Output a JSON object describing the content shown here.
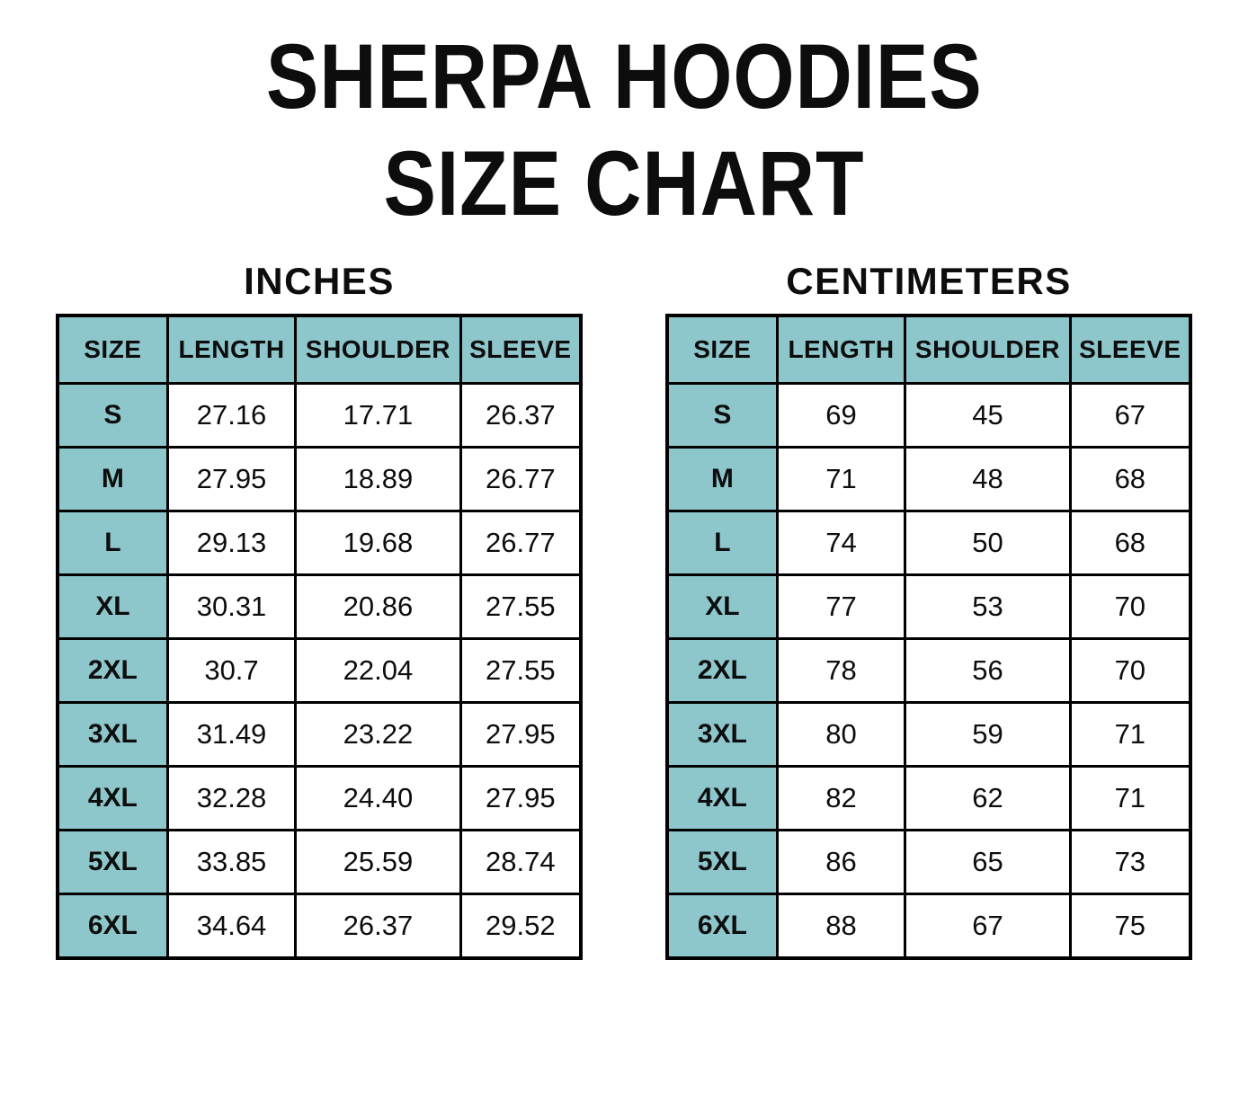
{
  "page": {
    "title_line1": "SHERPA HOODIES",
    "title_line2": "SIZE CHART"
  },
  "colors": {
    "header_fill": "#8DC7CC",
    "border": "#000000",
    "text": "#0D0D0D",
    "background": "#FFFFFF"
  },
  "tables": [
    {
      "title": "INCHES",
      "columns": [
        "SIZE",
        "LENGTH",
        "SHOULDER",
        "SLEEVE"
      ],
      "rows": [
        {
          "size": "S",
          "values": [
            "27.16",
            "17.71",
            "26.37"
          ]
        },
        {
          "size": "M",
          "values": [
            "27.95",
            "18.89",
            "26.77"
          ]
        },
        {
          "size": "L",
          "values": [
            "29.13",
            "19.68",
            "26.77"
          ]
        },
        {
          "size": "XL",
          "values": [
            "30.31",
            "20.86",
            "27.55"
          ]
        },
        {
          "size": "2XL",
          "values": [
            "30.7",
            "22.04",
            "27.55"
          ]
        },
        {
          "size": "3XL",
          "values": [
            "31.49",
            "23.22",
            "27.95"
          ]
        },
        {
          "size": "4XL",
          "values": [
            "32.28",
            "24.40",
            "27.95"
          ]
        },
        {
          "size": "5XL",
          "values": [
            "33.85",
            "25.59",
            "28.74"
          ]
        },
        {
          "size": "6XL",
          "values": [
            "34.64",
            "26.37",
            "29.52"
          ]
        }
      ]
    },
    {
      "title": "CENTIMETERS",
      "columns": [
        "SIZE",
        "LENGTH",
        "SHOULDER",
        "SLEEVE"
      ],
      "rows": [
        {
          "size": "S",
          "values": [
            "69",
            "45",
            "67"
          ]
        },
        {
          "size": "M",
          "values": [
            "71",
            "48",
            "68"
          ]
        },
        {
          "size": "L",
          "values": [
            "74",
            "50",
            "68"
          ]
        },
        {
          "size": "XL",
          "values": [
            "77",
            "53",
            "70"
          ]
        },
        {
          "size": "2XL",
          "values": [
            "78",
            "56",
            "70"
          ]
        },
        {
          "size": "3XL",
          "values": [
            "80",
            "59",
            "71"
          ]
        },
        {
          "size": "4XL",
          "values": [
            "82",
            "62",
            "71"
          ]
        },
        {
          "size": "5XL",
          "values": [
            "86",
            "65",
            "73"
          ]
        },
        {
          "size": "6XL",
          "values": [
            "88",
            "67",
            "75"
          ]
        }
      ]
    }
  ],
  "chart_data": [
    {
      "type": "table",
      "title": "INCHES",
      "columns": [
        "SIZE",
        "LENGTH",
        "SHOULDER",
        "SLEEVE"
      ],
      "rows": [
        [
          "S",
          27.16,
          17.71,
          26.37
        ],
        [
          "M",
          27.95,
          18.89,
          26.77
        ],
        [
          "L",
          29.13,
          19.68,
          26.77
        ],
        [
          "XL",
          30.31,
          20.86,
          27.55
        ],
        [
          "2XL",
          30.7,
          22.04,
          27.55
        ],
        [
          "3XL",
          31.49,
          23.22,
          27.95
        ],
        [
          "4XL",
          32.28,
          24.4,
          27.95
        ],
        [
          "5XL",
          33.85,
          25.59,
          28.74
        ],
        [
          "6XL",
          34.64,
          26.37,
          29.52
        ]
      ]
    },
    {
      "type": "table",
      "title": "CENTIMETERS",
      "columns": [
        "SIZE",
        "LENGTH",
        "SHOULDER",
        "SLEEVE"
      ],
      "rows": [
        [
          "S",
          69,
          45,
          67
        ],
        [
          "M",
          71,
          48,
          68
        ],
        [
          "L",
          74,
          50,
          68
        ],
        [
          "XL",
          77,
          53,
          70
        ],
        [
          "2XL",
          78,
          56,
          70
        ],
        [
          "3XL",
          80,
          59,
          71
        ],
        [
          "4XL",
          82,
          62,
          71
        ],
        [
          "5XL",
          86,
          65,
          73
        ],
        [
          "6XL",
          88,
          67,
          75
        ]
      ]
    }
  ]
}
